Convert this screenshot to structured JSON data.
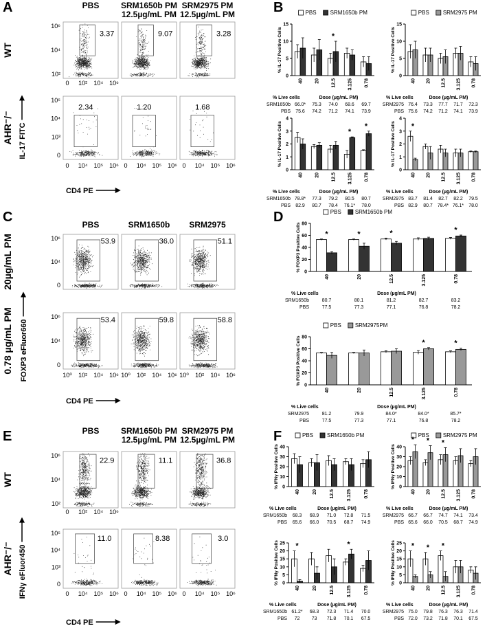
{
  "panels": [
    {
      "letter": "A",
      "columns": [
        [
          "PBS"
        ],
        [
          "SRM1650b PM",
          "12.5µg/mL PM"
        ],
        [
          "SRM2975 PM",
          "12.5µg/mL PM"
        ]
      ],
      "rows": [
        "WT",
        "AHR⁻/⁻"
      ],
      "y_label": "IL-17  FITC",
      "x_label": "CD4  PE",
      "row_yticks": [
        [
          "10⁶",
          "10⁴",
          "10²"
        ],
        [
          "10⁵",
          "10⁴",
          "10³",
          "0"
        ]
      ],
      "top_xticks": [
        "0",
        "10²",
        "10⁴",
        "10⁶"
      ],
      "xticks": [
        "0",
        "10⁴",
        "10⁵",
        "10⁶"
      ],
      "gates": [
        [
          "3.37",
          "9.07",
          "3.28"
        ],
        [
          "2.34",
          "1.20",
          "1.68"
        ]
      ]
    },
    {
      "letter": "C",
      "columns": [
        [
          "PBS"
        ],
        [
          "SRM1650b"
        ],
        [
          "SRM2975"
        ]
      ],
      "rows": [
        "20µg/mL PM",
        "0.78 µg/mL PM"
      ],
      "y_label": "FOXP3 eFluor660",
      "x_label": "CD4  PE",
      "row_yticks": [
        [
          "10⁶",
          "10⁴",
          "0"
        ],
        [
          "10⁶",
          "10⁴",
          "0"
        ]
      ],
      "xticks": [
        "10⁰",
        "10²",
        "10⁴",
        "10⁶"
      ],
      "gates": [
        [
          "53.9",
          "36.0",
          "51.1"
        ],
        [
          "53.4",
          "59.8",
          "58.8"
        ]
      ]
    },
    {
      "letter": "E",
      "columns": [
        [
          "PBS"
        ],
        [
          "SRM1650b PM",
          "12.5µg/mL PM"
        ],
        [
          "SRM2975 PM",
          "12.5µg/mL PM"
        ]
      ],
      "rows": [
        "WT",
        "AHR⁻/⁻"
      ],
      "y_label": "IFNγ eFluor450",
      "x_label": "CD4  PE",
      "row_yticks": [
        [
          "10⁶",
          "10⁴",
          "10²"
        ],
        [
          "10⁵",
          "10⁴",
          "10³",
          "0"
        ]
      ],
      "top_xticks": [
        "0",
        "10²",
        "10⁴",
        "10⁶"
      ],
      "xticks": [
        "0",
        "10⁴",
        "10⁵",
        "10⁶"
      ],
      "gates": [
        [
          "22.9",
          "11.1",
          "36.8"
        ],
        [
          "11.0",
          "8.38",
          "3.0"
        ]
      ]
    }
  ],
  "chart_letters": [
    "B",
    "D",
    "F"
  ],
  "chart_data": [
    {
      "type": "bar",
      "y_label": "% IL-17 Positive Cells",
      "categories": [
        "40",
        "20",
        "12.5",
        "3.125",
        "0.78"
      ],
      "series": [
        {
          "name": "PBS",
          "color": "#ffffff",
          "values": [
            7,
            6,
            5,
            6.5,
            4
          ],
          "errors": [
            2,
            2,
            1.5,
            1.5,
            1.5
          ]
        },
        {
          "name": "SRM1650b PM",
          "color": "#333333",
          "values": [
            8,
            7.5,
            7,
            6,
            3.5
          ],
          "errors": [
            3,
            3,
            3,
            1.5,
            2
          ]
        }
      ],
      "ylim": [
        0,
        15
      ],
      "yticks": [
        0,
        5,
        10,
        15
      ],
      "annotations": [
        {
          "x": "12.5",
          "text": "*"
        }
      ],
      "table": {
        "title": "% Live cells",
        "subtitle": "Dose (µg/mL PM)",
        "rows": [
          [
            "SRM1650b",
            "66.0*",
            "75.3",
            "74.0",
            "68.6",
            "69.7"
          ],
          [
            "PBS",
            "75.6",
            "74.2",
            "71.2",
            "74.1",
            "73.9"
          ]
        ]
      }
    },
    {
      "type": "bar",
      "y_label": "% IL-17 Positive Cells",
      "categories": [
        "40",
        "20",
        "12.5",
        "3.125",
        "0.78"
      ],
      "series": [
        {
          "name": "PBS",
          "color": "#ffffff",
          "values": [
            7,
            6,
            5,
            6.5,
            4
          ],
          "errors": [
            2,
            2,
            1.5,
            1.5,
            1.5
          ]
        },
        {
          "name": "SRM2975 PM",
          "color": "#999999",
          "values": [
            7.5,
            6,
            5.5,
            6.5,
            3.5
          ],
          "errors": [
            2.5,
            2,
            2,
            2,
            2
          ]
        }
      ],
      "ylim": [
        0,
        15
      ],
      "yticks": [
        0,
        5,
        10,
        15
      ],
      "annotations": [],
      "table": {
        "title": "% Live cells",
        "subtitle": "Dose (µg/mL PM)",
        "rows": [
          [
            "SRM2975",
            "76.4",
            "73.3",
            "77.7",
            "71.7",
            "72.3"
          ],
          [
            "PBS",
            "75.6",
            "74.2",
            "71.2",
            "74.1",
            "73.9"
          ]
        ]
      }
    },
    {
      "type": "bar",
      "y_label": "% IL-17 Positive Cells",
      "categories": [
        "40",
        "20",
        "12.5",
        "3.125",
        "0.78"
      ],
      "series": [
        {
          "color": "#ffffff",
          "values": [
            2.5,
            1.8,
            1.6,
            1.2,
            1.5
          ],
          "errors": [
            0.4,
            0.15,
            0.3,
            0.3,
            0.05
          ]
        },
        {
          "color": "#333333",
          "values": [
            2.0,
            1.9,
            1.9,
            2.5,
            2.8
          ],
          "errors": [
            0.4,
            0.2,
            0.3,
            0.05,
            0.2
          ]
        }
      ],
      "ylim": [
        0,
        4
      ],
      "yticks": [
        0,
        1,
        2,
        3,
        4
      ],
      "annotations": [
        {
          "x": "3.125",
          "text": "*"
        },
        {
          "x": "0.78",
          "text": "*"
        }
      ],
      "table": {
        "title": "% Live cells",
        "subtitle": "Dose (µg/mL PM)",
        "rows": [
          [
            "SRM1650b",
            "78.8*",
            "77.3",
            "79.2",
            "80.5",
            "80.7"
          ],
          [
            "PBS",
            "82.9",
            "80.7",
            "78.4",
            "76.1*",
            "78.0"
          ]
        ]
      }
    },
    {
      "type": "bar",
      "y_label": "% IL-17 Positive Cells",
      "categories": [
        "40",
        "20",
        "12.5",
        "3.125",
        "0.78"
      ],
      "series": [
        {
          "color": "#ffffff",
          "values": [
            2.6,
            1.8,
            1.6,
            1.3,
            1.4
          ],
          "errors": [
            0.4,
            0.2,
            0.3,
            0.3,
            0.05
          ]
        },
        {
          "color": "#999999",
          "values": [
            0.8,
            1.3,
            1.3,
            1.3,
            1.4
          ],
          "errors": [
            0.1,
            0.5,
            0.3,
            0.3,
            0.05
          ]
        }
      ],
      "ylim": [
        0,
        4
      ],
      "yticks": [
        0,
        1,
        2,
        3,
        4
      ],
      "annotations": [
        {
          "x": "40",
          "text": "*"
        }
      ],
      "table": {
        "title": "% Live cells",
        "subtitle": "Dose (µg/mL PM)",
        "rows": [
          [
            "SRM2975",
            "83.7",
            "81.4",
            "82.7",
            "82.2",
            "79.5"
          ],
          [
            "PBS",
            "82.9",
            "80.7",
            "78.4*",
            "76.1*",
            "78.0"
          ]
        ]
      }
    },
    {
      "type": "bar",
      "y_label": "% FOXP3 Positive Cells",
      "categories": [
        "40",
        "20",
        "12.5",
        "3.125",
        "0.78"
      ],
      "series": [
        {
          "name": "PBS",
          "color": "#ffffff",
          "values": [
            53,
            53,
            54,
            54,
            55
          ],
          "errors": [
            1,
            1,
            1.5,
            2,
            1.5
          ]
        },
        {
          "name": "SRM1650b PM",
          "color": "#333333",
          "values": [
            31,
            42,
            47,
            55,
            59
          ],
          "errors": [
            2,
            5,
            3,
            2,
            1.5
          ]
        }
      ],
      "ylim": [
        0,
        80
      ],
      "yticks": [
        0,
        20,
        40,
        60,
        80
      ],
      "annotations": [
        {
          "x": "40",
          "text": "*"
        },
        {
          "x": "20",
          "text": "*"
        },
        {
          "x": "12.5",
          "text": "*"
        },
        {
          "x": "0.78",
          "text": "*"
        }
      ],
      "table": {
        "title": "% Live cells",
        "subtitle": "Dose (µg/mL PM)",
        "rows": [
          [
            "SRM1650b",
            "80.7",
            "80.1",
            "81.2",
            "82.7",
            "83.2"
          ],
          [
            "PBS",
            "77.5",
            "77.3",
            "77.1",
            "76.8",
            "78.2"
          ]
        ]
      }
    },
    {
      "type": "bar",
      "y_label": "% FOXP3 Positive Cells",
      "categories": [
        "40",
        "20",
        "12.5",
        "3.125",
        "0.78"
      ],
      "series": [
        {
          "name": "PBS",
          "color": "#ffffff",
          "values": [
            53,
            53,
            55,
            54,
            55
          ],
          "errors": [
            1,
            1,
            1.5,
            3,
            1.5
          ]
        },
        {
          "name": "SRM2975PM",
          "color": "#999999",
          "values": [
            49,
            53,
            56,
            60,
            59
          ],
          "errors": [
            5,
            5,
            4,
            2,
            2
          ]
        }
      ],
      "ylim": [
        0,
        80
      ],
      "yticks": [
        0,
        20,
        40,
        60,
        80
      ],
      "annotations": [
        {
          "x": "3.125",
          "text": "*"
        },
        {
          "x": "0.78",
          "text": "*"
        }
      ],
      "table": {
        "title": "% Live cells",
        "subtitle": "Dose (µg/mL PM)",
        "rows": [
          [
            "SRM2975",
            "81.2",
            "79.9",
            "84.0*",
            "84.0*",
            "85.7*"
          ],
          [
            "PBS",
            "77.5",
            "77.3",
            "77.1",
            "76.8",
            "78.2"
          ]
        ]
      }
    },
    {
      "type": "bar",
      "y_label": "% IFNγ Positive Cells",
      "categories": [
        "40",
        "20",
        "12.5",
        "3.125",
        "0.78"
      ],
      "series": [
        {
          "name": "PBS",
          "color": "#ffffff",
          "values": [
            28,
            24,
            26,
            25,
            23
          ],
          "errors": [
            5,
            4,
            5,
            3,
            4
          ]
        },
        {
          "name": "SRM1650b PM",
          "color": "#333333",
          "values": [
            22,
            24,
            22,
            22,
            27
          ],
          "errors": [
            8,
            8,
            6,
            6,
            8
          ]
        }
      ],
      "ylim": [
        0,
        40
      ],
      "yticks": [
        0,
        10,
        20,
        30,
        40
      ],
      "annotations": [],
      "table": {
        "title": "% Live cells",
        "subtitle": "Dose (µg/mL PM)",
        "rows": [
          [
            "SRM1650b",
            "68.3",
            "68.9",
            "71.0",
            "72.8",
            "71.5"
          ],
          [
            "PBS",
            "65.6",
            "66.0",
            "70.5",
            "68.7",
            "74.9"
          ]
        ]
      }
    },
    {
      "type": "bar",
      "y_label": "% IFNγ Positive Cells",
      "categories": [
        "40",
        "20",
        "12.5",
        "3.125",
        "0.78"
      ],
      "series": [
        {
          "name": "PBS",
          "color": "#ffffff",
          "values": [
            26,
            24,
            27,
            26,
            23
          ],
          "errors": [
            4,
            3,
            5,
            4,
            3
          ]
        },
        {
          "name": "SRM2975 PM",
          "color": "#999999",
          "values": [
            35,
            34,
            32,
            31,
            30
          ],
          "errors": [
            7,
            7,
            7,
            7,
            8
          ]
        }
      ],
      "ylim": [
        0,
        40
      ],
      "yticks": [
        0,
        10,
        20,
        30,
        40
      ],
      "annotations": [
        {
          "x": "40",
          "text": "*"
        },
        {
          "x": "20",
          "text": "*"
        },
        {
          "x": "12.5",
          "text": "*"
        }
      ],
      "table": {
        "title": "% Live cells",
        "subtitle": "Dose (µg/mL PM)",
        "rows": [
          [
            "SRM2975",
            "66.7",
            "66.7",
            "74.7",
            "74.1",
            "73.4"
          ],
          [
            "PBS",
            "65.6",
            "66.0",
            "70.5",
            "68.7",
            "74.9"
          ]
        ]
      }
    },
    {
      "type": "bar",
      "y_label": "% IFNγ Positive Cells",
      "categories": [
        "40",
        "20",
        "12.5",
        "3.125",
        "0.78"
      ],
      "series": [
        {
          "color": "#ffffff",
          "values": [
            15,
            15,
            17,
            13,
            9
          ],
          "errors": [
            5,
            4,
            4,
            2,
            2
          ]
        },
        {
          "color": "#333333",
          "values": [
            1,
            6,
            10,
            18,
            14
          ],
          "errors": [
            1,
            4,
            5,
            3,
            6
          ]
        }
      ],
      "ylim": [
        0,
        25
      ],
      "yticks": [
        0,
        5,
        10,
        15,
        20,
        25
      ],
      "annotations": [
        {
          "x": "40",
          "text": "*"
        },
        {
          "x": "3.125",
          "text": "*"
        }
      ],
      "table": {
        "title": "% Live cells",
        "subtitle": "Dose (µg/mL PM)",
        "rows": [
          [
            "SRM1650b",
            "61.2*",
            "68.3",
            "72.3",
            "71.4",
            "70.0"
          ],
          [
            "PBS",
            "72",
            "73",
            "71.8",
            "70.1",
            "67.5"
          ]
        ]
      }
    },
    {
      "type": "bar",
      "y_label": "% IFNγ Positive Cells",
      "categories": [
        "40",
        "20",
        "12.5",
        "3.125",
        "0.78"
      ],
      "series": [
        {
          "color": "#ffffff",
          "values": [
            15,
            15,
            17,
            10,
            8
          ],
          "errors": [
            5,
            4,
            3,
            4,
            2
          ]
        },
        {
          "color": "#999999",
          "values": [
            4,
            5,
            4,
            10,
            6
          ],
          "errors": [
            1,
            2,
            3,
            4,
            4
          ]
        }
      ],
      "ylim": [
        0,
        25
      ],
      "yticks": [
        0,
        5,
        10,
        15,
        20,
        25
      ],
      "annotations": [
        {
          "x": "40",
          "text": "*"
        },
        {
          "x": "20",
          "text": "*"
        },
        {
          "x": "12.5",
          "text": "*"
        }
      ],
      "table": {
        "title": "% Live cells",
        "subtitle": "Dose (µg/mL PM)",
        "rows": [
          [
            "SRM2975",
            "75.0",
            "79.8",
            "76.3",
            "76.3",
            "71.4"
          ],
          [
            "PBS",
            "72.0",
            "73.2",
            "71.8",
            "70.1",
            "67.5"
          ]
        ]
      }
    }
  ]
}
